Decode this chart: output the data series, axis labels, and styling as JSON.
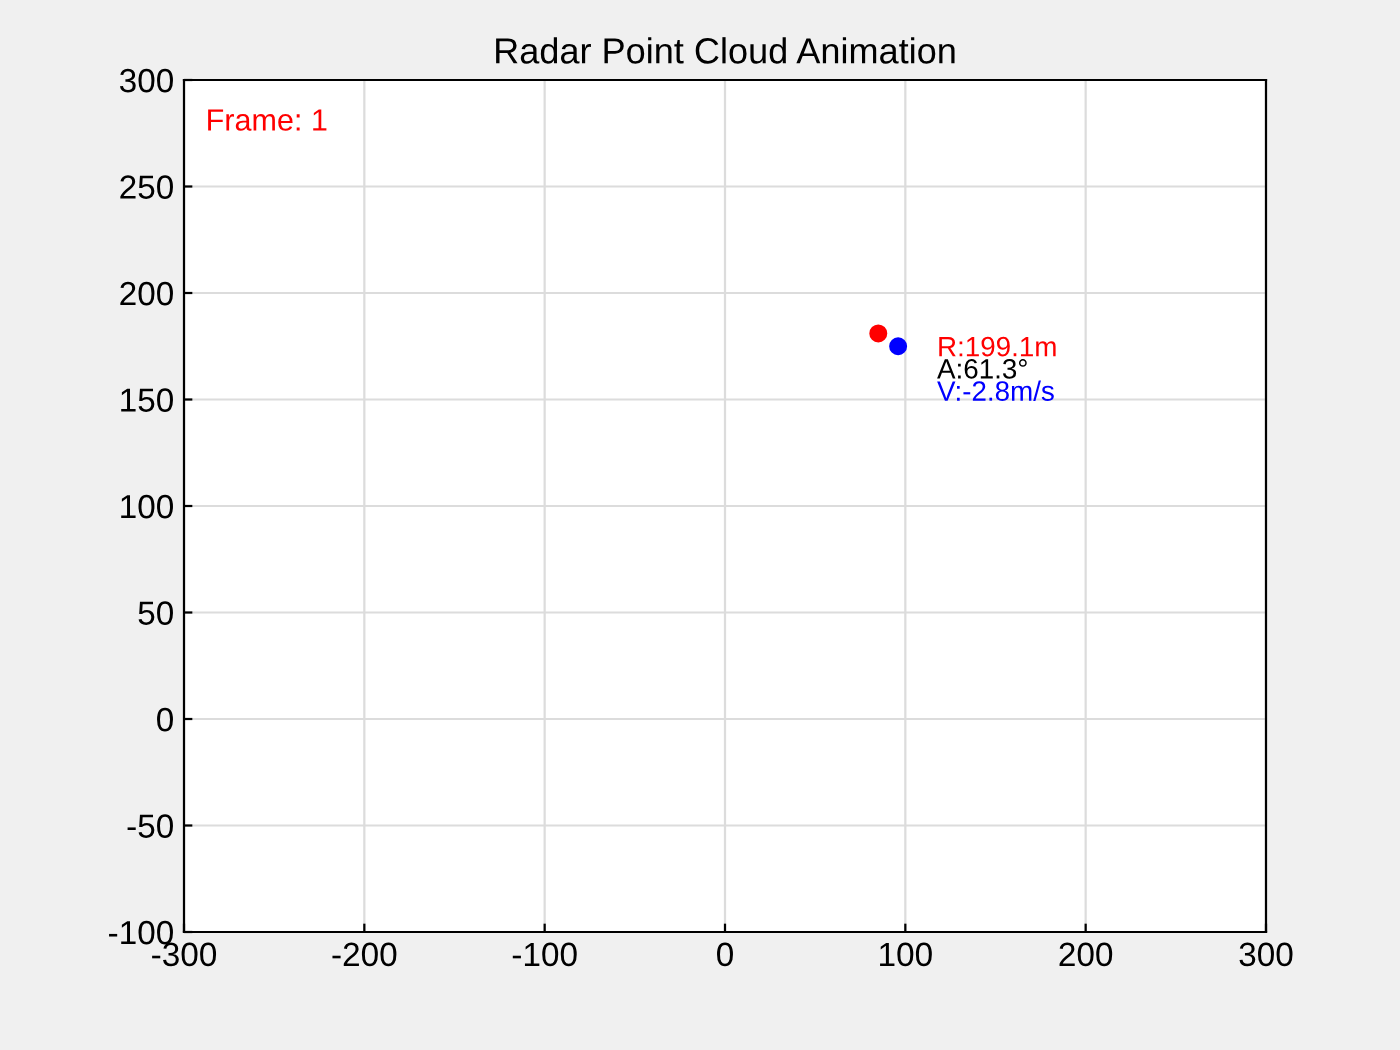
{
  "chart_data": {
    "type": "scatter",
    "title": "Radar Point Cloud Animation",
    "series": [
      {
        "color": "#ff0000",
        "x": [
          85
        ],
        "values": [
          181
        ]
      },
      {
        "color": "#0000ff",
        "x": [
          96
        ],
        "values": [
          175
        ]
      }
    ],
    "xlim": [
      -300,
      300
    ],
    "xticks": [
      -300,
      -200,
      -100,
      0,
      100,
      200,
      300
    ],
    "ylim": [
      -100,
      300
    ],
    "yticks": [
      -100,
      -50,
      0,
      50,
      100,
      150,
      200,
      250,
      300
    ],
    "grid": true,
    "marker": "circle",
    "annotations": [
      "Frame: 1",
      "R:199.1m",
      "A:61.3°",
      "V:-2.8m/s"
    ]
  }
}
